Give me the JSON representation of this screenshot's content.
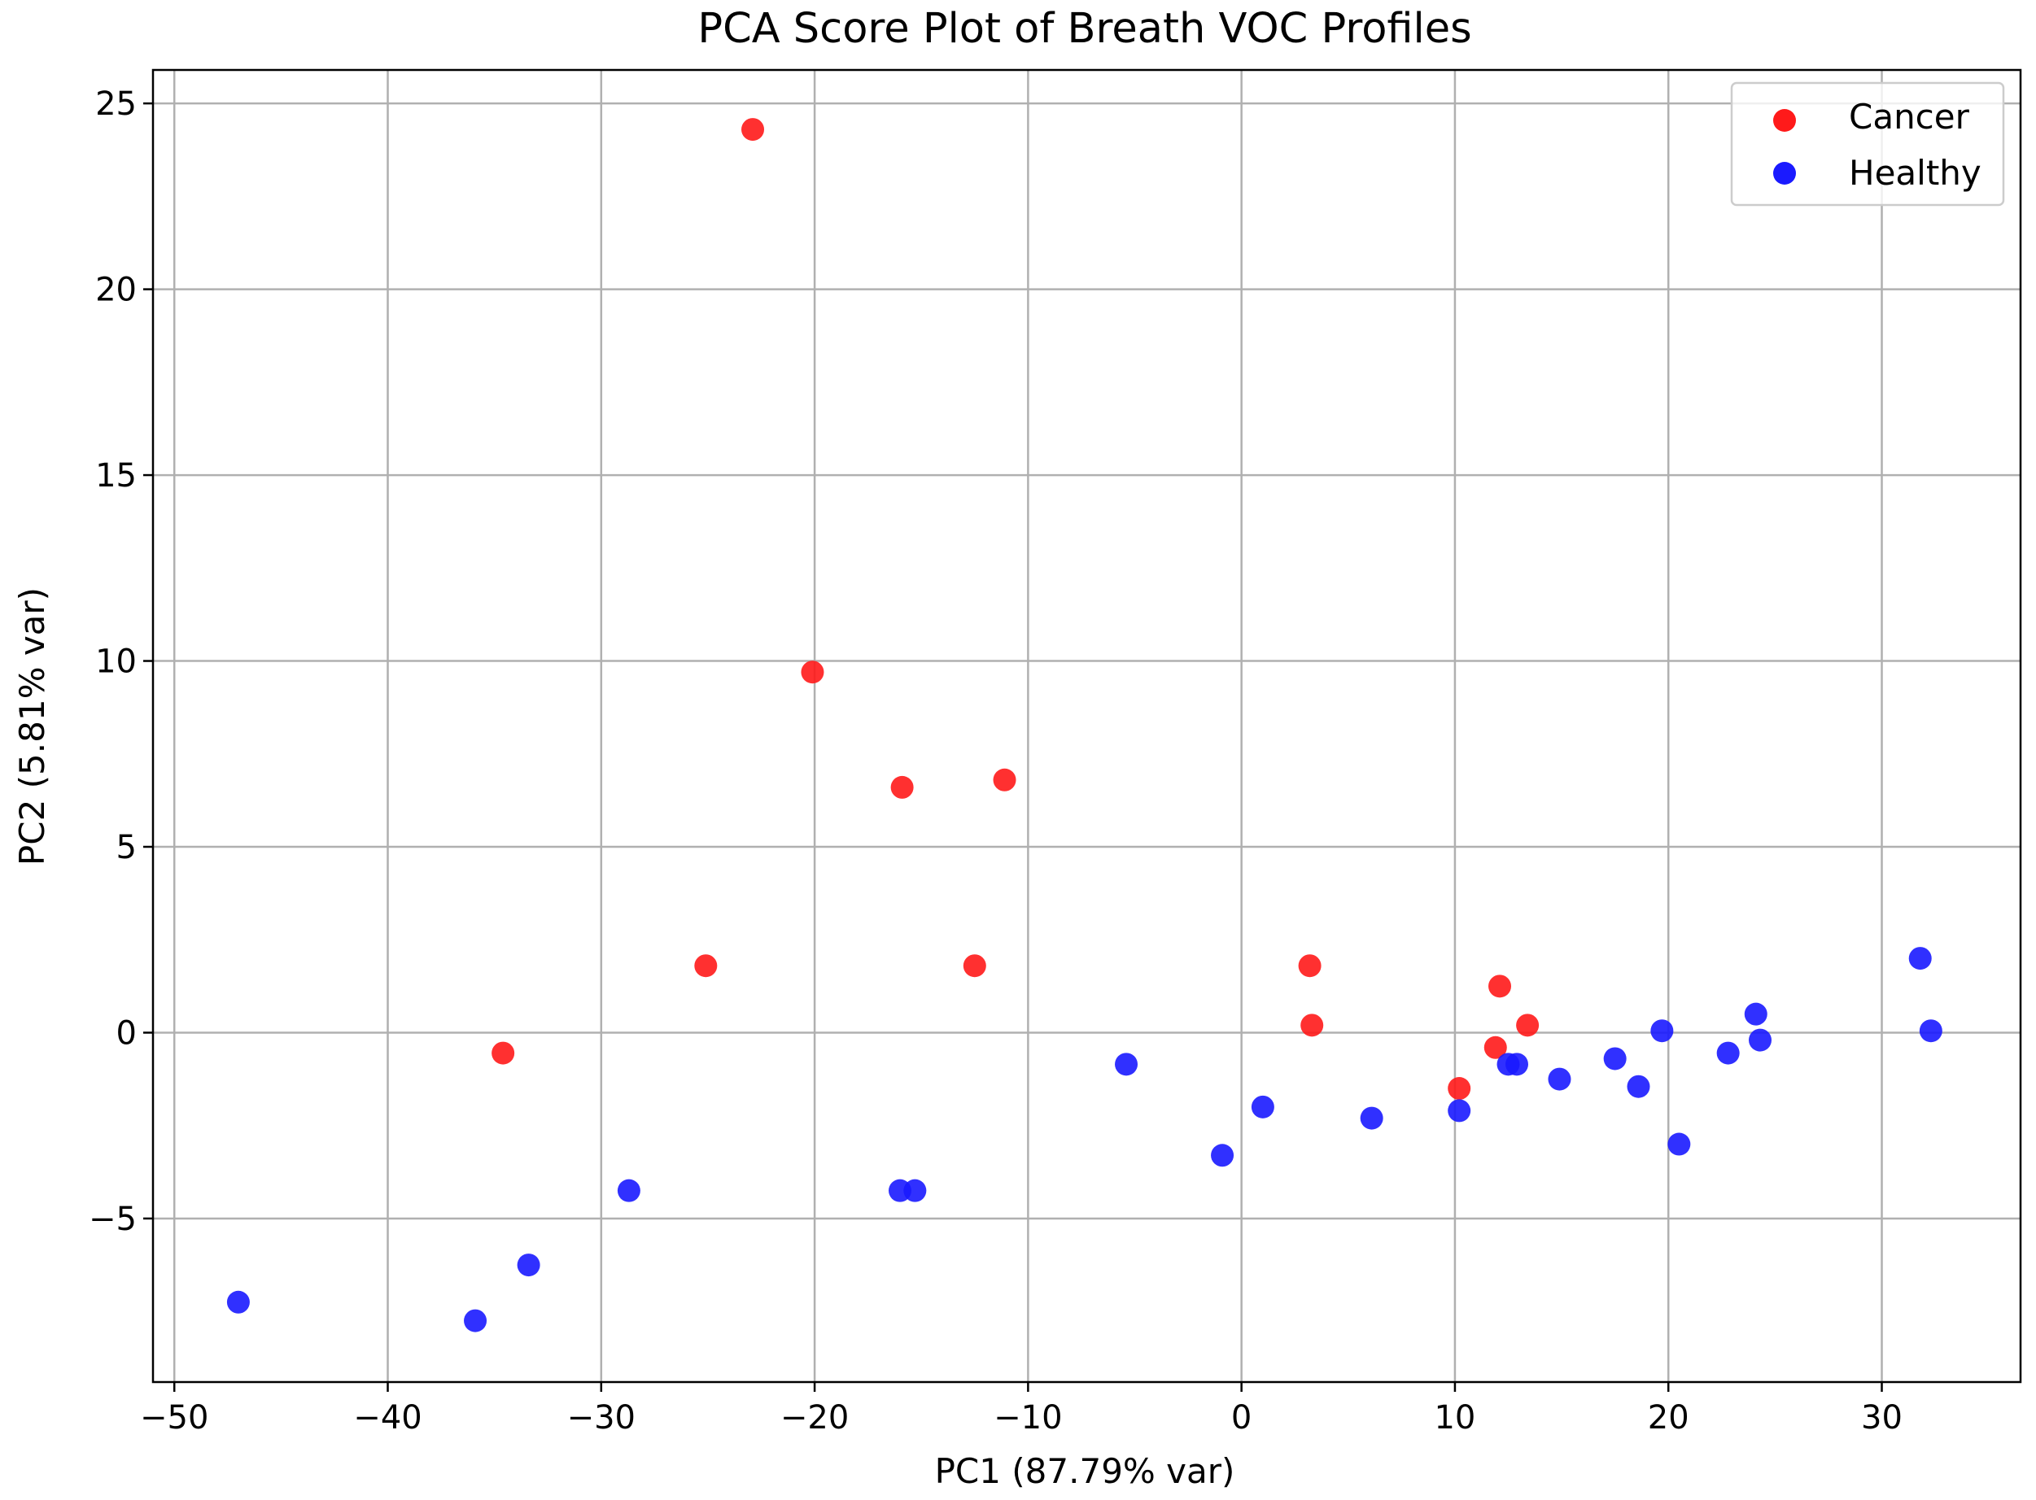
{
  "chart_data": {
    "type": "scatter",
    "title": "PCA Score Plot of Breath VOC Profiles",
    "xlabel": "PC1 (87.79% var)",
    "ylabel": "PC2 (5.81% var)",
    "xlim": [
      -51,
      36.5
    ],
    "ylim": [
      -9.4,
      25.9
    ],
    "xticks": [
      -50,
      -40,
      -30,
      -20,
      -10,
      0,
      10,
      20,
      30
    ],
    "yticks": [
      -5,
      0,
      5,
      10,
      15,
      20,
      25
    ],
    "grid": true,
    "legend_position": "top-right",
    "series": [
      {
        "name": "Cancer",
        "color": "#ff1a1a",
        "points": [
          [
            -22.9,
            24.3
          ],
          [
            -20.1,
            9.7
          ],
          [
            -15.9,
            6.6
          ],
          [
            -11.1,
            6.8
          ],
          [
            -25.1,
            1.8
          ],
          [
            -12.5,
            1.8
          ],
          [
            -34.6,
            -0.55
          ],
          [
            3.2,
            1.8
          ],
          [
            3.3,
            0.2
          ],
          [
            12.1,
            1.25
          ],
          [
            13.4,
            0.2
          ],
          [
            11.9,
            -0.4
          ],
          [
            10.2,
            -1.5
          ]
        ]
      },
      {
        "name": "Healthy",
        "color": "#1a1aff",
        "points": [
          [
            -47.0,
            -7.25
          ],
          [
            -35.9,
            -7.75
          ],
          [
            -33.4,
            -6.25
          ],
          [
            -28.7,
            -4.25
          ],
          [
            -16.0,
            -4.25
          ],
          [
            -15.3,
            -4.25
          ],
          [
            -5.4,
            -0.85
          ],
          [
            -0.9,
            -3.3
          ],
          [
            1.0,
            -2.0
          ],
          [
            6.1,
            -2.3
          ],
          [
            10.2,
            -2.1
          ],
          [
            12.5,
            -0.85
          ],
          [
            12.9,
            -0.85
          ],
          [
            14.9,
            -1.25
          ],
          [
            17.5,
            -0.7
          ],
          [
            18.6,
            -1.45
          ],
          [
            19.7,
            0.05
          ],
          [
            20.5,
            -3.0
          ],
          [
            22.8,
            -0.55
          ],
          [
            24.1,
            0.5
          ],
          [
            24.3,
            -0.2
          ],
          [
            31.8,
            2.0
          ],
          [
            32.3,
            0.05
          ]
        ]
      }
    ]
  }
}
